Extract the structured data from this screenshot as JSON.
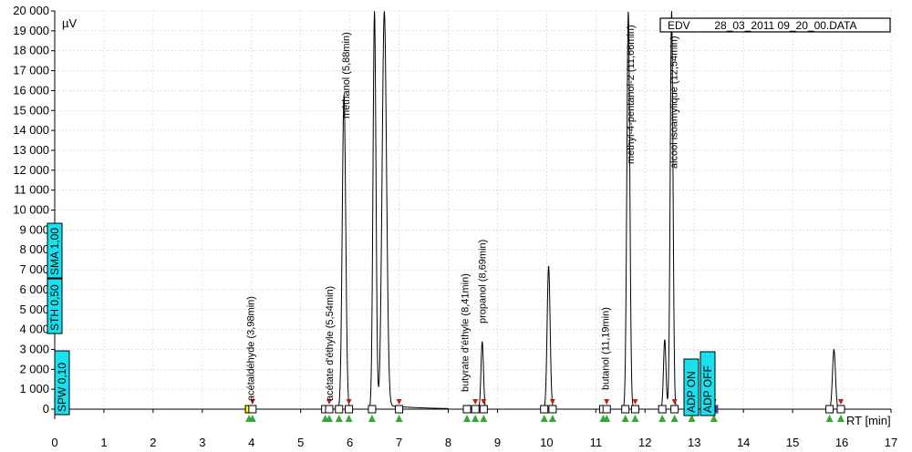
{
  "chart_data": {
    "type": "line",
    "xlabel": "RT [min]",
    "ylabel": "µV",
    "file_label": "EDV        28_03_2011 09_20_00.DATA",
    "xlim": [
      0,
      17
    ],
    "ylim": [
      -500,
      20000
    ],
    "x_ticks": [
      0,
      1,
      2,
      3,
      4,
      5,
      6,
      7,
      8,
      9,
      10,
      11,
      12,
      13,
      14,
      15,
      16,
      17
    ],
    "y_ticks": [
      {
        "v": 0,
        "t": "0"
      },
      {
        "v": 1000,
        "t": "1 000"
      },
      {
        "v": 2000,
        "t": "2 000"
      },
      {
        "v": 3000,
        "t": "3 000"
      },
      {
        "v": 4000,
        "t": "4 000"
      },
      {
        "v": 5000,
        "t": "5 000"
      },
      {
        "v": 6000,
        "t": "6 000"
      },
      {
        "v": 7000,
        "t": "7 000"
      },
      {
        "v": 8000,
        "t": "8 000"
      },
      {
        "v": 9000,
        "t": "9 000"
      },
      {
        "v": 10000,
        "t": "10 000"
      },
      {
        "v": 11000,
        "t": "11 000"
      },
      {
        "v": 12000,
        "t": "12 000"
      },
      {
        "v": 13000,
        "t": "13 000"
      },
      {
        "v": 14000,
        "t": "14 000"
      },
      {
        "v": 15000,
        "t": "15 000"
      },
      {
        "v": 16000,
        "t": "16 000"
      },
      {
        "v": 17000,
        "t": "17 000"
      },
      {
        "v": 18000,
        "t": "18 000"
      },
      {
        "v": 19000,
        "t": "19 000"
      },
      {
        "v": 20000,
        "t": "20 000"
      }
    ],
    "peaks": [
      {
        "rt": 3.98,
        "height": 0,
        "width": 0.05
      },
      {
        "rt": 5.54,
        "height": 80,
        "width": 0.04
      },
      {
        "rt": 5.88,
        "height": 15800,
        "width": 0.035
      },
      {
        "rt": 6.5,
        "height": 20000,
        "width": 0.03
      },
      {
        "rt": 6.7,
        "height": 20000,
        "width": 0.045
      },
      {
        "rt": 8.41,
        "height": 200,
        "width": 0.03
      },
      {
        "rt": 8.69,
        "height": 3400,
        "width": 0.025
      },
      {
        "rt": 10.04,
        "height": 7200,
        "width": 0.03
      },
      {
        "rt": 11.19,
        "height": 100,
        "width": 0.03
      },
      {
        "rt": 11.66,
        "height": 20000,
        "width": 0.03
      },
      {
        "rt": 12.4,
        "height": 3500,
        "width": 0.025
      },
      {
        "rt": 12.54,
        "height": 20000,
        "width": 0.028
      },
      {
        "rt": 15.84,
        "height": 3000,
        "width": 0.03
      }
    ],
    "peak_labels": [
      {
        "rt": 3.98,
        "text": "acétaldéhyde (3,98min)"
      },
      {
        "rt": 5.54,
        "text": "acétate d'éthyle (5,54min)"
      },
      {
        "rt": 5.88,
        "text": "méthanol (5,88min)"
      },
      {
        "rt": 8.41,
        "text": "butyrate d'éthyle (8,41min)"
      },
      {
        "rt": 8.69,
        "text": "propanol (8,69min)"
      },
      {
        "rt": 11.19,
        "text": "butanol (11,19min)"
      },
      {
        "rt": 11.66,
        "text": "méthyl-4-pentanol-2 (11,66min)"
      },
      {
        "rt": 12.54,
        "text": "alcool isoamylique (12,54min)"
      }
    ],
    "event_boxes": [
      {
        "text": "SPW 0,10"
      },
      {
        "text": "STH 0,50"
      },
      {
        "text": "SMA 1,00"
      },
      {
        "text": "ADP ON"
      },
      {
        "text": "ADP OFF"
      }
    ],
    "integration_markers": [
      3.95,
      4.02,
      5.5,
      5.58,
      5.78,
      5.98,
      6.45,
      7.0,
      8.38,
      8.55,
      8.72,
      9.95,
      10.12,
      11.15,
      11.22,
      11.6,
      11.8,
      12.35,
      12.6,
      12.95,
      13.4,
      15.75,
      15.98
    ],
    "colors": {
      "trace": "#000000",
      "box_fill": "#19e0ee",
      "start_marker": "#33aa33",
      "end_marker": "#b22222",
      "highlight": "#ffff00",
      "adp_marker": "#0000cc"
    }
  }
}
